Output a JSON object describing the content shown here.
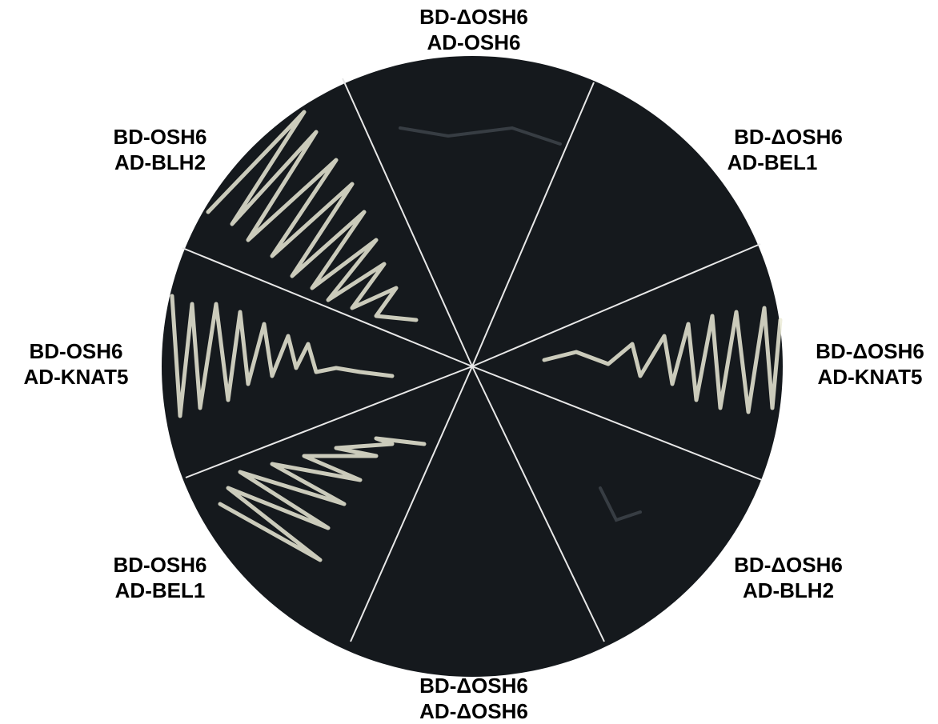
{
  "labels": [
    {
      "line1": "BD-ΔOSH6",
      "line2": "AD-OSH6"
    },
    {
      "line1": "BD-ΔOSH6",
      "line2": "AD-BEL1"
    },
    {
      "line1": "BD-ΔOSH6",
      "line2": "AD-KNAT5"
    },
    {
      "line1": "BD-ΔOSH6",
      "line2": "AD-BLH2"
    },
    {
      "line1": "BD-ΔOSH6",
      "line2": "AD-ΔOSH6"
    },
    {
      "line1": "BD-OSH6",
      "line2": "AD-BEL1"
    },
    {
      "line1": "BD-OSH6",
      "line2": "AD-KNAT5"
    },
    {
      "line1": "BD-OSH6",
      "line2": "AD-BLH2"
    }
  ]
}
